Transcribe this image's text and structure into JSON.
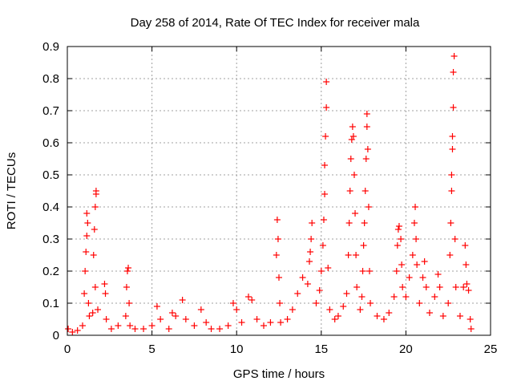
{
  "chart_data": {
    "type": "scatter",
    "title": "Day 258 of 2014, Rate Of TEC Index for receiver mala",
    "xlabel": "GPS time / hours",
    "ylabel": "ROTI / TECUs",
    "xlim": [
      0,
      25
    ],
    "ylim": [
      0,
      0.9
    ],
    "x_ticks": [
      "0",
      "5",
      "10",
      "15",
      "20",
      "25"
    ],
    "y_ticks": [
      "0",
      "0.1",
      "0.2",
      "0.3",
      "0.4",
      "0.5",
      "0.6",
      "0.7",
      "0.8",
      "0.9"
    ],
    "x_tick_values": [
      0,
      5,
      10,
      15,
      20,
      25
    ],
    "y_tick_values": [
      0,
      0.1,
      0.2,
      0.3,
      0.4,
      0.5,
      0.6,
      0.7,
      0.8,
      0.9
    ],
    "grid": true,
    "marker": "+",
    "color": "#ff0000",
    "series": [
      {
        "points": [
          [
            0.05,
            0.02
          ],
          [
            0.3,
            0.01
          ],
          [
            0.6,
            0.015
          ],
          [
            0.9,
            0.03
          ],
          [
            1.0,
            0.13
          ],
          [
            1.05,
            0.2
          ],
          [
            1.1,
            0.26
          ],
          [
            1.15,
            0.31
          ],
          [
            1.2,
            0.35
          ],
          [
            1.15,
            0.38
          ],
          [
            1.25,
            0.1
          ],
          [
            1.3,
            0.06
          ],
          [
            1.5,
            0.07
          ],
          [
            1.55,
            0.25
          ],
          [
            1.6,
            0.33
          ],
          [
            1.65,
            0.4
          ],
          [
            1.7,
            0.45
          ],
          [
            1.7,
            0.44
          ],
          [
            1.65,
            0.15
          ],
          [
            1.8,
            0.08
          ],
          [
            2.2,
            0.16
          ],
          [
            2.25,
            0.13
          ],
          [
            2.3,
            0.05
          ],
          [
            2.6,
            0.02
          ],
          [
            3.0,
            0.03
          ],
          [
            3.45,
            0.06
          ],
          [
            3.5,
            0.15
          ],
          [
            3.55,
            0.2
          ],
          [
            3.6,
            0.21
          ],
          [
            3.65,
            0.1
          ],
          [
            3.7,
            0.03
          ],
          [
            4.0,
            0.02
          ],
          [
            4.5,
            0.02
          ],
          [
            5.0,
            0.03
          ],
          [
            5.3,
            0.09
          ],
          [
            5.5,
            0.05
          ],
          [
            6.0,
            0.02
          ],
          [
            6.2,
            0.07
          ],
          [
            6.4,
            0.06
          ],
          [
            6.8,
            0.11
          ],
          [
            7.0,
            0.05
          ],
          [
            7.5,
            0.03
          ],
          [
            7.9,
            0.08
          ],
          [
            8.2,
            0.04
          ],
          [
            8.5,
            0.02
          ],
          [
            9.0,
            0.02
          ],
          [
            9.5,
            0.03
          ],
          [
            9.8,
            0.1
          ],
          [
            10.0,
            0.08
          ],
          [
            10.3,
            0.04
          ],
          [
            10.7,
            0.12
          ],
          [
            10.9,
            0.11
          ],
          [
            11.2,
            0.05
          ],
          [
            11.6,
            0.03
          ],
          [
            12.0,
            0.04
          ],
          [
            12.35,
            0.25
          ],
          [
            12.4,
            0.36
          ],
          [
            12.45,
            0.3
          ],
          [
            12.5,
            0.18
          ],
          [
            12.55,
            0.1
          ],
          [
            12.6,
            0.04
          ],
          [
            13.0,
            0.05
          ],
          [
            13.3,
            0.08
          ],
          [
            13.6,
            0.13
          ],
          [
            13.9,
            0.18
          ],
          [
            14.2,
            0.16
          ],
          [
            14.3,
            0.23
          ],
          [
            14.35,
            0.26
          ],
          [
            14.4,
            0.3
          ],
          [
            14.45,
            0.35
          ],
          [
            14.7,
            0.1
          ],
          [
            14.9,
            0.14
          ],
          [
            15.0,
            0.2
          ],
          [
            15.1,
            0.28
          ],
          [
            15.15,
            0.36
          ],
          [
            15.2,
            0.44
          ],
          [
            15.2,
            0.53
          ],
          [
            15.25,
            0.62
          ],
          [
            15.3,
            0.71
          ],
          [
            15.3,
            0.79
          ],
          [
            15.4,
            0.21
          ],
          [
            15.5,
            0.08
          ],
          [
            15.8,
            0.05
          ],
          [
            16.0,
            0.06
          ],
          [
            16.3,
            0.09
          ],
          [
            16.5,
            0.13
          ],
          [
            16.6,
            0.25
          ],
          [
            16.65,
            0.35
          ],
          [
            16.7,
            0.45
          ],
          [
            16.75,
            0.55
          ],
          [
            16.8,
            0.61
          ],
          [
            16.85,
            0.65
          ],
          [
            16.9,
            0.62
          ],
          [
            16.95,
            0.5
          ],
          [
            17.0,
            0.38
          ],
          [
            17.05,
            0.25
          ],
          [
            17.1,
            0.15
          ],
          [
            17.3,
            0.08
          ],
          [
            17.4,
            0.12
          ],
          [
            17.45,
            0.2
          ],
          [
            17.5,
            0.28
          ],
          [
            17.55,
            0.35
          ],
          [
            17.6,
            0.45
          ],
          [
            17.65,
            0.55
          ],
          [
            17.7,
            0.65
          ],
          [
            17.7,
            0.69
          ],
          [
            17.75,
            0.58
          ],
          [
            17.8,
            0.4
          ],
          [
            17.85,
            0.2
          ],
          [
            17.9,
            0.1
          ],
          [
            18.3,
            0.06
          ],
          [
            18.7,
            0.05
          ],
          [
            19.0,
            0.07
          ],
          [
            19.3,
            0.12
          ],
          [
            19.45,
            0.2
          ],
          [
            19.5,
            0.28
          ],
          [
            19.55,
            0.33
          ],
          [
            19.6,
            0.34
          ],
          [
            19.7,
            0.3
          ],
          [
            19.75,
            0.22
          ],
          [
            19.8,
            0.15
          ],
          [
            20.0,
            0.12
          ],
          [
            20.2,
            0.18
          ],
          [
            20.4,
            0.25
          ],
          [
            20.5,
            0.35
          ],
          [
            20.55,
            0.4
          ],
          [
            20.6,
            0.3
          ],
          [
            20.65,
            0.22
          ],
          [
            20.8,
            0.1
          ],
          [
            21.0,
            0.18
          ],
          [
            21.1,
            0.23
          ],
          [
            21.2,
            0.15
          ],
          [
            21.4,
            0.07
          ],
          [
            21.7,
            0.12
          ],
          [
            21.9,
            0.19
          ],
          [
            22.0,
            0.15
          ],
          [
            22.2,
            0.06
          ],
          [
            22.5,
            0.1
          ],
          [
            22.6,
            0.25
          ],
          [
            22.65,
            0.35
          ],
          [
            22.7,
            0.45
          ],
          [
            22.7,
            0.5
          ],
          [
            22.75,
            0.58
          ],
          [
            22.75,
            0.62
          ],
          [
            22.8,
            0.71
          ],
          [
            22.8,
            0.82
          ],
          [
            22.85,
            0.87
          ],
          [
            22.9,
            0.3
          ],
          [
            22.95,
            0.15
          ],
          [
            23.2,
            0.06
          ],
          [
            23.4,
            0.15
          ],
          [
            23.5,
            0.28
          ],
          [
            23.55,
            0.22
          ],
          [
            23.6,
            0.16
          ],
          [
            23.7,
            0.14
          ],
          [
            23.8,
            0.05
          ],
          [
            23.85,
            0.02
          ]
        ]
      }
    ]
  }
}
